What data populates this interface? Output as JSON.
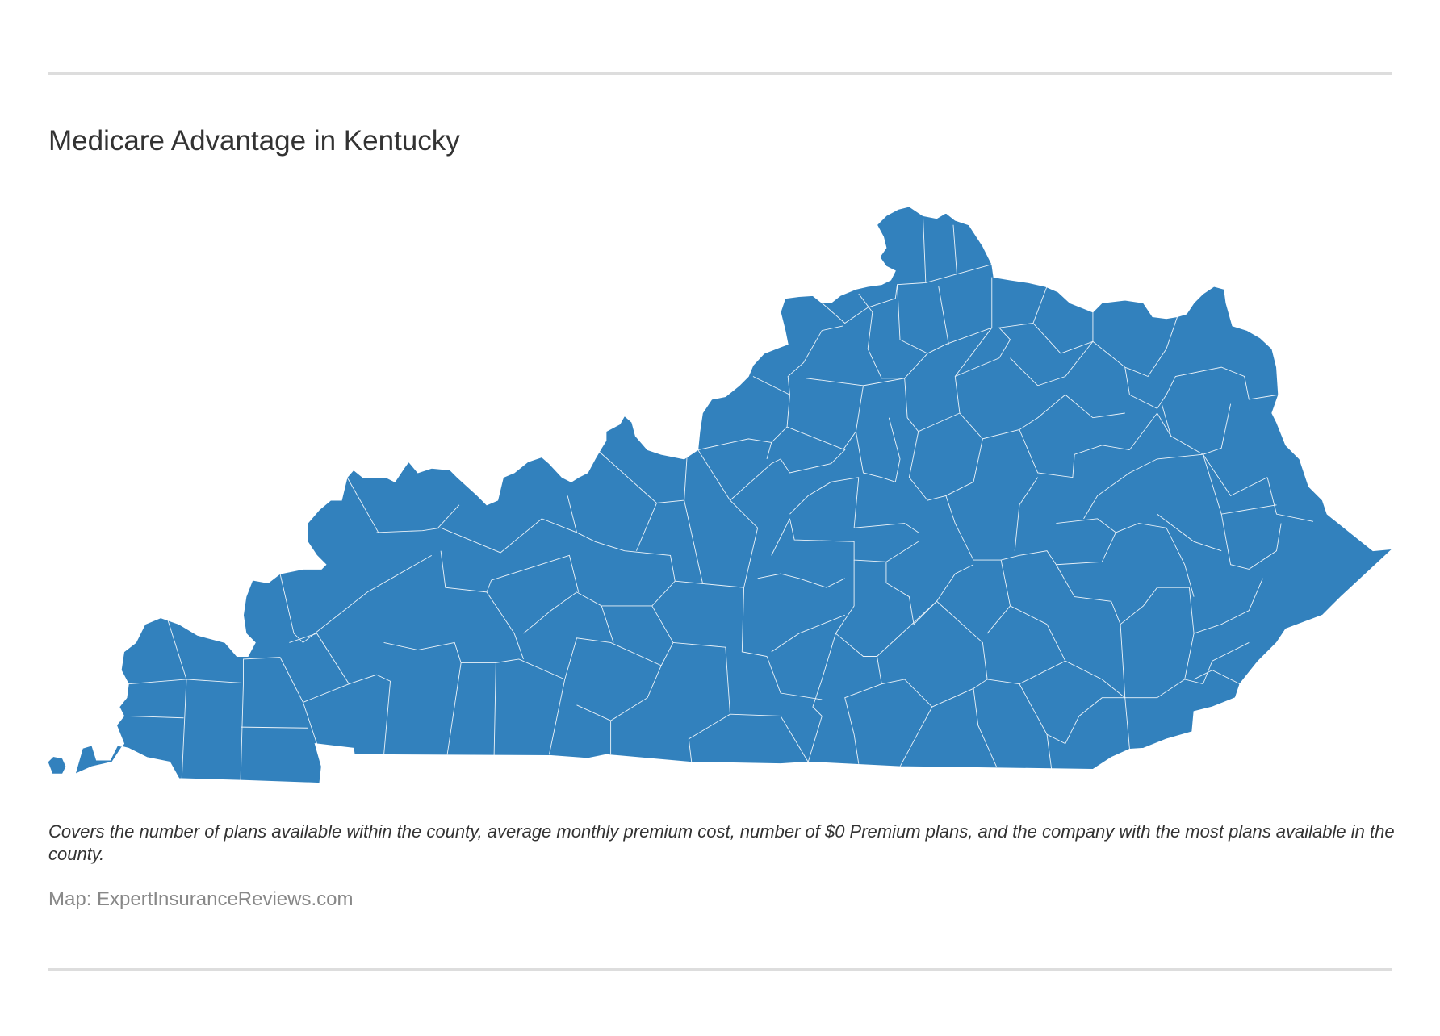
{
  "title": "Medicare Advantage in Kentucky",
  "description": "Covers the number of plans available within the county, average monthly premium cost, number of $0 Premium plans, and the company with the most plans available in the county.",
  "source": "Map: ExpertInsuranceReviews.com",
  "map": {
    "region": "Kentucky",
    "unit": "county",
    "fill_color": "#3281bd",
    "border_color": "#ffffff"
  }
}
